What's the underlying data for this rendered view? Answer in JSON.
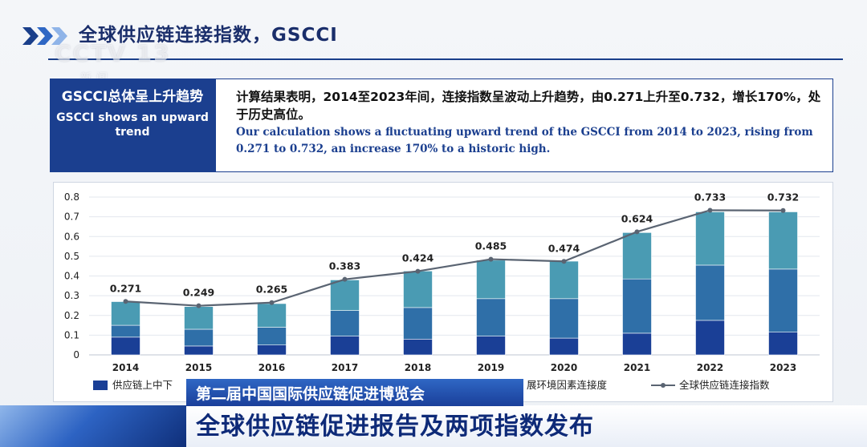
{
  "header": {
    "title": "全球供应链连接指数，GSCCI",
    "chevron_icon": "triple-chevron-right-icon",
    "color": "#1a2e6b"
  },
  "watermark": {
    "logo": "CCTV 13",
    "sub": "新闻"
  },
  "callout": {
    "head_zh": "GSCCI总体呈上升趋势",
    "head_en": "GSCCI shows an upward trend",
    "body_zh": "计算结果表明，2014至2023年间，连接指数呈波动上升趋势，由0.271上升至0.732，增长170%，处于历史高位。",
    "body_en": "Our calculation shows a fluctuating upward trend of the GSCCI from 2014 to 2023, rising from 0.271 to 0.732, an increase 170% to a historic high."
  },
  "chart_data": {
    "type": "bar",
    "stacked": true,
    "categories": [
      "2014",
      "2015",
      "2016",
      "2017",
      "2018",
      "2019",
      "2020",
      "2021",
      "2022",
      "2023"
    ],
    "ylim": [
      0,
      0.8
    ],
    "yticks": [
      "0",
      "0.1",
      "0.2",
      "0.3",
      "0.4",
      "0.5",
      "0.6",
      "0.7",
      "0.8"
    ],
    "grid": true,
    "series": [
      {
        "name": "供应链上中下",
        "color": "#1a3f96",
        "values": [
          0.09,
          0.045,
          0.05,
          0.095,
          0.08,
          0.095,
          0.085,
          0.11,
          0.175,
          0.115
        ]
      },
      {
        "color": "#2f6fa8",
        "values": [
          0.06,
          0.085,
          0.09,
          0.13,
          0.16,
          0.19,
          0.2,
          0.275,
          0.28,
          0.32
        ]
      },
      {
        "name": "展环境因素连接度",
        "color": "#4a9bb3",
        "values": [
          0.12,
          0.115,
          0.12,
          0.155,
          0.185,
          0.195,
          0.19,
          0.235,
          0.27,
          0.29
        ]
      }
    ],
    "line": {
      "name": "全球供应链连接指数",
      "color": "#5a6472",
      "values": [
        0.271,
        0.249,
        0.265,
        0.383,
        0.424,
        0.485,
        0.474,
        0.624,
        0.733,
        0.732
      ],
      "labels": [
        "0.271",
        "0.249",
        "0.265",
        "0.383",
        "0.424",
        "0.485",
        "0.474",
        "0.624",
        "0.733",
        "0.732"
      ]
    },
    "legend_position": "bottom"
  },
  "ticker": {
    "top": "第二届中国国际供应链促进博览会",
    "main": "全球供应链促进报告及两项指数发布"
  }
}
